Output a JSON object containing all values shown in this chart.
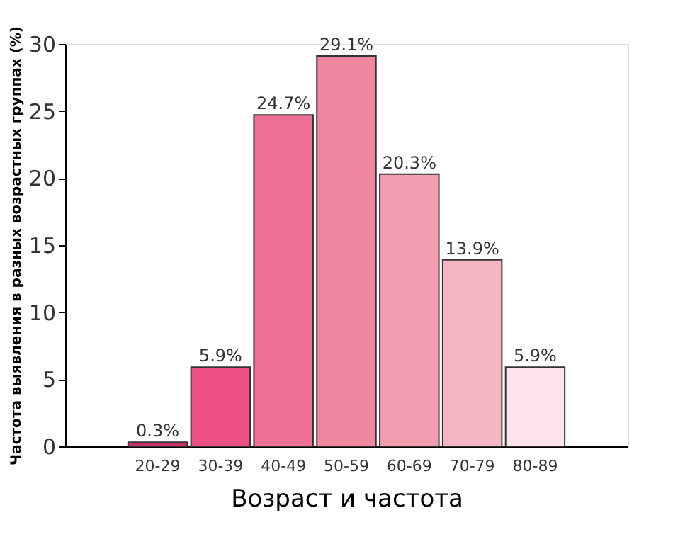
{
  "chart_data": {
    "type": "bar",
    "categories": [
      null,
      "20-29",
      "30-39",
      "40-49",
      "50-59",
      "60-69",
      "70-79",
      "80-89",
      null
    ],
    "values": [
      null,
      0.3,
      5.9,
      24.7,
      29.1,
      20.3,
      13.9,
      5.9,
      null
    ],
    "colors": [
      "#ffffff",
      "#c8306a",
      "#ec4f86",
      "#ee7096",
      "#f0879f",
      "#f39db0",
      "#f6b5c2",
      "#fde4ea",
      "#ffffff"
    ],
    "value_labels": [
      null,
      "0.3%",
      "5.9%",
      "24.7%",
      "29.1%",
      "20.3%",
      "13.9%",
      "5.9%",
      null
    ],
    "xlabel": "Возраст и частота",
    "ylabel": "Частота выявления в разных возрастных группах (%)",
    "ylim": [
      0,
      30
    ],
    "yticks": [
      0,
      5,
      10,
      15,
      20,
      25,
      30
    ],
    "grid": false,
    "legend": false
  }
}
